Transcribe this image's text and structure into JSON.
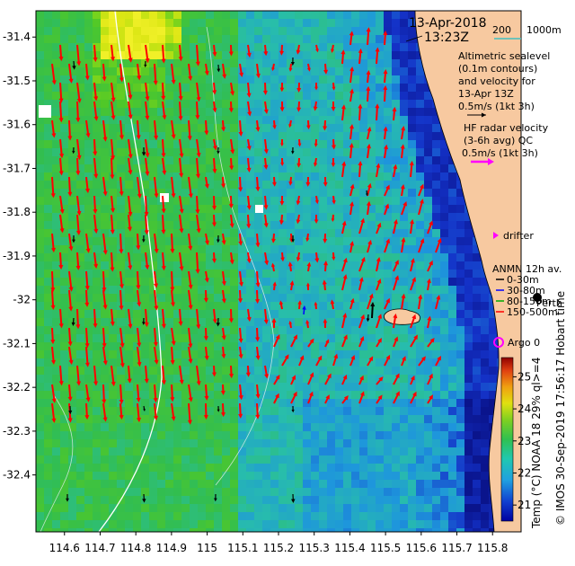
{
  "header": {
    "date": "13-Apr-2018",
    "time": "13:23Z"
  },
  "scale_bar": {
    "label_left": "200",
    "label_right": "1000m",
    "color": "#40c0c0"
  },
  "legend": {
    "sealevel_lines": [
      "Altimetric sealevel",
      "(0.1m contours)",
      "and velocity for",
      "13-Apr 13Z"
    ],
    "sealevel_ref": "0.5m/s (1kt 3h)",
    "hf_lines": [
      "HF radar velocity",
      "(3-6h avg) QC"
    ],
    "hf_ref": "0.5m/s (1kt 3h)",
    "drifter": "drifter",
    "anmn_title": "ANMN 12h av.",
    "anmn_items": [
      {
        "label": "0-30m",
        "color": "#000000"
      },
      {
        "label": "30-80m",
        "color": "#0000ff"
      },
      {
        "label": "80-150m",
        "color": "#00aa00"
      },
      {
        "label": "150-500m",
        "color": "#ff0000"
      }
    ],
    "argo": "Argo 0",
    "city": "Perth",
    "hobart": "Hobart tim"
  },
  "colorbar": {
    "label": "Temp (°C) NOAA 18 29% ql>=4",
    "ticks": [
      "25",
      "24",
      "23",
      "22",
      "21"
    ],
    "min": 20.5,
    "max": 25.6
  },
  "credit": "© IMOS 30-Sep-2019 17:56:17 Hobart time",
  "axes": {
    "lon_ticks": [
      "114.6",
      "114.7",
      "114.8",
      "114.9",
      "115",
      "115.1",
      "115.2",
      "115.3",
      "115.4",
      "115.5",
      "115.6",
      "115.7",
      "115.8"
    ],
    "lat_ticks": [
      "-31.4",
      "-31.5",
      "-31.6",
      "-31.7",
      "-31.8",
      "-31.9",
      "-32",
      "-32.1",
      "-32.2",
      "-32.3",
      "-32.4"
    ],
    "lon_range": [
      114.52,
      115.88
    ],
    "lat_range": [
      -32.53,
      -31.34
    ]
  },
  "colors": {
    "hf_arrow": "#ff0000",
    "sealevel_arrow": "#000000",
    "drifter": "#ff00ff",
    "argo": "#ff00ff",
    "land": "#f7c9a0",
    "contour": "#e8f0f0"
  }
}
